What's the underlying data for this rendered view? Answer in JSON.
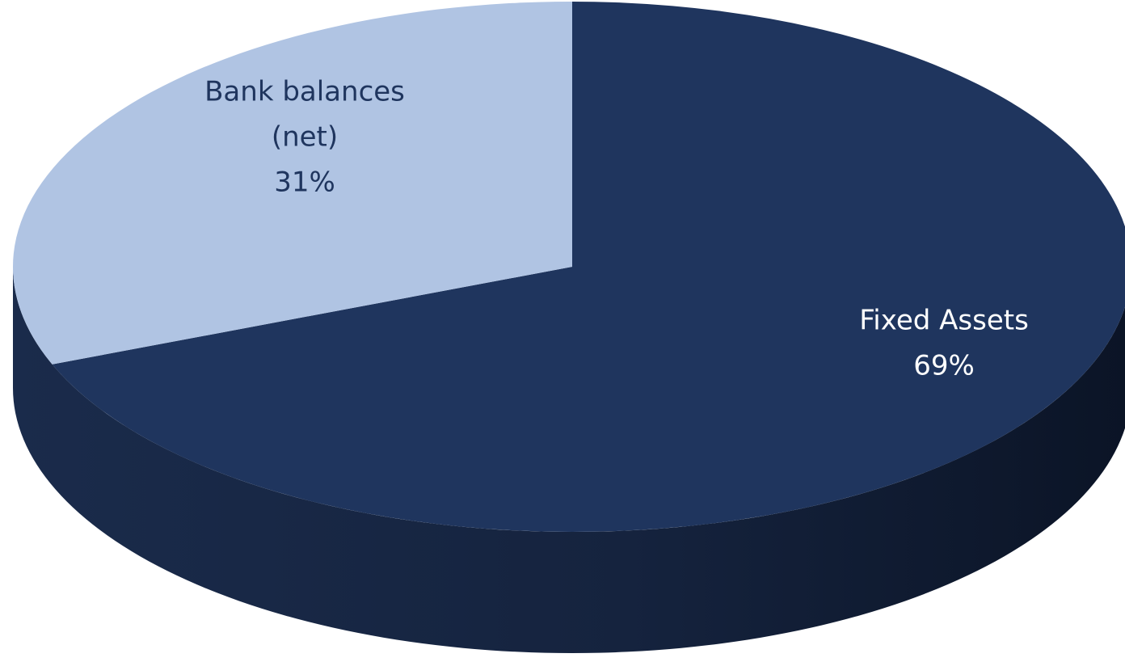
{
  "chart_data": {
    "type": "pie",
    "style": "3d",
    "start_angle_deg": 90,
    "direction": "clockwise",
    "slices": [
      {
        "name": "Fixed Assets",
        "value": 69,
        "label_lines": [
          "Fixed Assets",
          "69%"
        ],
        "color": "#1f355e",
        "label_color": "#ffffff"
      },
      {
        "name": "Bank balances (net)",
        "value": 31,
        "label_lines": [
          "Bank balances",
          "(net)",
          "31%"
        ],
        "color": "#b0c4e3",
        "label_color": "#1f355e"
      }
    ]
  }
}
